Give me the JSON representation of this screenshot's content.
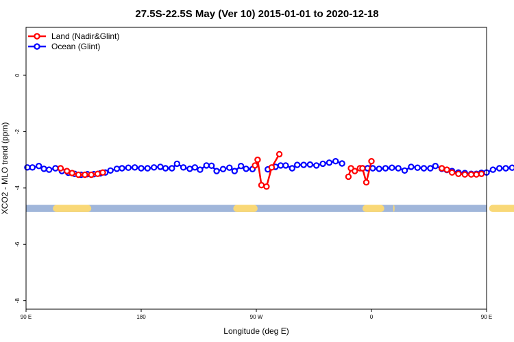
{
  "chart_data": {
    "type": "line",
    "title": "27.5S-22.5S May (Ver 10)   2015-01-01 to 2020-12-18",
    "xlabel": "Longitude (deg E)",
    "ylabel": "XCO2 - MLO trend (ppm)",
    "xlim": [
      90,
      450
    ],
    "ylim": [
      -8.3,
      1.7
    ],
    "x_ticks": [
      {
        "value": 90,
        "label": "90 E"
      },
      {
        "value": 180,
        "label": "180"
      },
      {
        "value": 270,
        "label": "90 W"
      },
      {
        "value": 360,
        "label": "0"
      },
      {
        "value": 450,
        "label": "90 E"
      },
      {
        "value": 540,
        "label": "180"
      }
    ],
    "y_ticks": [
      0,
      -2,
      -4,
      -6,
      -8
    ],
    "legend": {
      "position": "top-left",
      "entries": [
        "Land (Nadir&Glint)",
        "Ocean (Glint)"
      ]
    },
    "series": [
      {
        "name": "Ocean (Glint)",
        "color": "#0000ff",
        "segments": [
          [
            [
              91,
              -3.27
            ],
            [
              95,
              -3.27
            ],
            [
              100,
              -3.22
            ],
            [
              104,
              -3.32
            ],
            [
              108,
              -3.35
            ],
            [
              113,
              -3.3
            ],
            [
              118,
              -3.4
            ],
            [
              123,
              -3.46
            ],
            [
              128,
              -3.5
            ],
            [
              133,
              -3.53
            ],
            [
              138,
              -3.51
            ],
            [
              143,
              -3.51
            ],
            [
              148,
              -3.48
            ],
            [
              152,
              -3.45
            ],
            [
              156,
              -3.38
            ],
            [
              161,
              -3.32
            ],
            [
              165,
              -3.3
            ],
            [
              170,
              -3.28
            ],
            [
              175,
              -3.27
            ],
            [
              180,
              -3.3
            ],
            [
              185,
              -3.3
            ],
            [
              190,
              -3.27
            ],
            [
              195,
              -3.25
            ],
            [
              199,
              -3.3
            ],
            [
              204,
              -3.3
            ],
            [
              208,
              -3.14
            ],
            [
              213,
              -3.27
            ],
            [
              218,
              -3.32
            ],
            [
              222,
              -3.27
            ],
            [
              226,
              -3.35
            ],
            [
              231,
              -3.2
            ],
            [
              235,
              -3.21
            ],
            [
              239,
              -3.4
            ],
            [
              244,
              -3.33
            ],
            [
              249,
              -3.28
            ],
            [
              253,
              -3.4
            ],
            [
              258,
              -3.22
            ],
            [
              262,
              -3.32
            ],
            [
              267,
              -3.33
            ]
          ],
          [
            [
              279,
              -3.34
            ],
            [
              285,
              -3.25
            ],
            [
              289,
              -3.2
            ],
            [
              293,
              -3.2
            ],
            [
              298,
              -3.3
            ],
            [
              302,
              -3.18
            ],
            [
              307,
              -3.18
            ],
            [
              312,
              -3.17
            ],
            [
              317,
              -3.2
            ],
            [
              322,
              -3.14
            ],
            [
              327,
              -3.1
            ],
            [
              332,
              -3.05
            ],
            [
              337,
              -3.13
            ]
          ],
          [
            [
              353,
              -3.3
            ],
            [
              357,
              -3.3
            ],
            [
              361,
              -3.3
            ],
            [
              366,
              -3.32
            ],
            [
              371,
              -3.3
            ],
            [
              376,
              -3.28
            ],
            [
              381,
              -3.3
            ],
            [
              386,
              -3.38
            ],
            [
              391,
              -3.25
            ],
            [
              396,
              -3.28
            ],
            [
              401,
              -3.3
            ],
            [
              406,
              -3.3
            ],
            [
              410,
              -3.22
            ],
            [
              415,
              -3.32
            ],
            [
              419,
              -3.36
            ],
            [
              423,
              -3.4
            ],
            [
              428,
              -3.45
            ],
            [
              433,
              -3.47
            ],
            [
              438,
              -3.5
            ],
            [
              442,
              -3.5
            ],
            [
              446,
              -3.46
            ],
            [
              450,
              -3.45
            ],
            [
              455,
              -3.35
            ],
            [
              460,
              -3.3
            ],
            [
              465,
              -3.3
            ],
            [
              470,
              -3.28
            ],
            [
              474,
              -3.27
            ]
          ]
        ]
      },
      {
        "name": "Land (Nadir&Glint)",
        "color": "#ff0000",
        "segments": [
          [
            [
              117,
              -3.3
            ],
            [
              122,
              -3.4
            ],
            [
              126,
              -3.47
            ],
            [
              131,
              -3.53
            ],
            [
              136,
              -3.53
            ],
            [
              141,
              -3.53
            ],
            [
              146,
              -3.5
            ],
            [
              150,
              -3.45
            ]
          ],
          [
            [
              269,
              -3.2
            ],
            [
              271,
              -3.0
            ],
            [
              274,
              -3.9
            ],
            [
              278,
              -3.95
            ],
            [
              282,
              -3.27
            ],
            [
              288,
              -2.8
            ]
          ],
          [
            [
              342,
              -3.6
            ],
            [
              344,
              -3.3
            ],
            [
              347,
              -3.4
            ],
            [
              351,
              -3.3
            ],
            [
              353,
              -3.3
            ],
            [
              356,
              -3.8
            ],
            [
              360,
              -3.05
            ]
          ],
          [
            [
              415,
              -3.3
            ],
            [
              419,
              -3.35
            ],
            [
              423,
              -3.45
            ],
            [
              428,
              -3.5
            ],
            [
              433,
              -3.52
            ],
            [
              438,
              -3.52
            ],
            [
              442,
              -3.52
            ],
            [
              446,
              -3.5
            ]
          ]
        ]
      }
    ],
    "colors": {
      "ocean_band": "#a0b6da",
      "land_band": "#f9d877",
      "frame": "#000000"
    },
    "band": {
      "y_top": -4.6,
      "y_bottom": -4.85,
      "land_ranges": [
        [
          111,
          141
        ],
        [
          252,
          271
        ],
        [
          353,
          370
        ],
        [
          377,
          378
        ],
        [
          452,
          483
        ]
      ]
    }
  }
}
